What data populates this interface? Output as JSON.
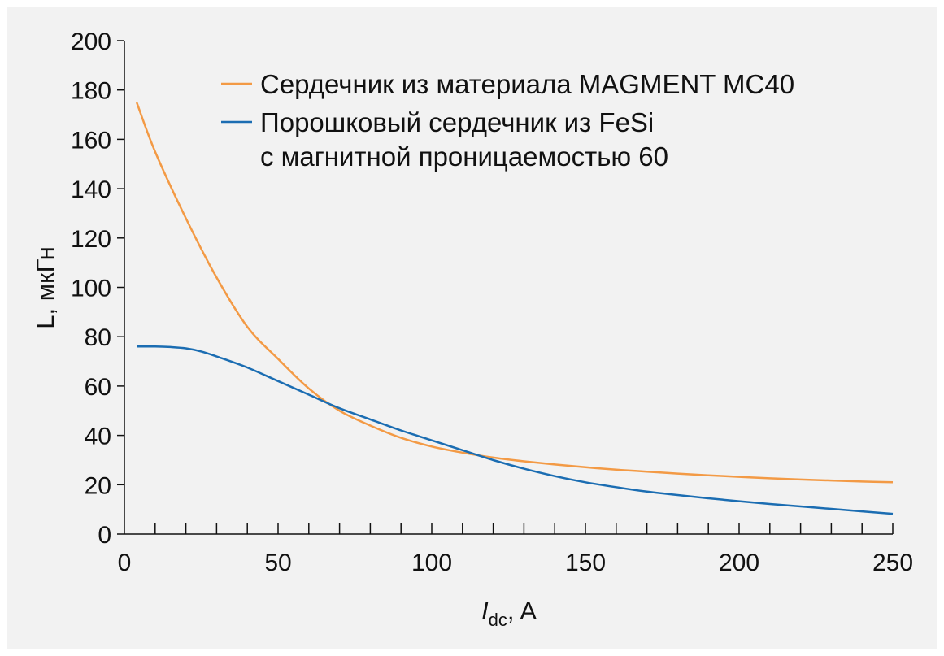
{
  "chart_data": {
    "type": "line",
    "xlabel": "I",
    "xlabel_sub": "dc",
    "xlabel_suffix": ", A",
    "ylabel": "L, мкГн",
    "xlim": [
      0,
      250
    ],
    "ylim": [
      0,
      200
    ],
    "x_ticks": [
      "0",
      "50",
      "100",
      "150",
      "200",
      "250"
    ],
    "y_ticks": [
      "0",
      "20",
      "40",
      "60",
      "80",
      "100",
      "120",
      "140",
      "160",
      "180",
      "200"
    ],
    "legend_position": "top-right",
    "series": [
      {
        "name": "Сердечник из материала MAGMENT MC40",
        "color": "#f39a45",
        "x": [
          4,
          10,
          20,
          30,
          40,
          50,
          60,
          70,
          80,
          90,
          100,
          110,
          120,
          130,
          140,
          150,
          160,
          170,
          180,
          190,
          200,
          210,
          220,
          230,
          240,
          250
        ],
        "y": [
          175,
          155,
          128,
          104,
          84,
          71,
          59,
          50,
          44,
          39,
          35.5,
          33,
          31,
          29.5,
          28.2,
          27.1,
          26.1,
          25.3,
          24.5,
          23.8,
          23.2,
          22.6,
          22.1,
          21.7,
          21.3,
          21
        ]
      },
      {
        "name": "Порошковый сердечник из FeSi",
        "name_line2": "с магнитной проницаемостью 60",
        "color": "#1b6db2",
        "x": [
          4,
          10,
          15,
          20,
          25,
          30,
          40,
          50,
          60,
          70,
          80,
          90,
          100,
          110,
          120,
          130,
          140,
          150,
          160,
          170,
          180,
          190,
          200,
          210,
          220,
          230,
          240,
          250
        ],
        "y": [
          76,
          76,
          75.8,
          75.3,
          74,
          72,
          67.5,
          62,
          56.5,
          51,
          46.5,
          42,
          38,
          34,
          30,
          26.5,
          23.5,
          21,
          19,
          17.2,
          15.8,
          14.5,
          13.3,
          12.2,
          11.2,
          10.2,
          9.2,
          8.2
        ]
      }
    ]
  }
}
